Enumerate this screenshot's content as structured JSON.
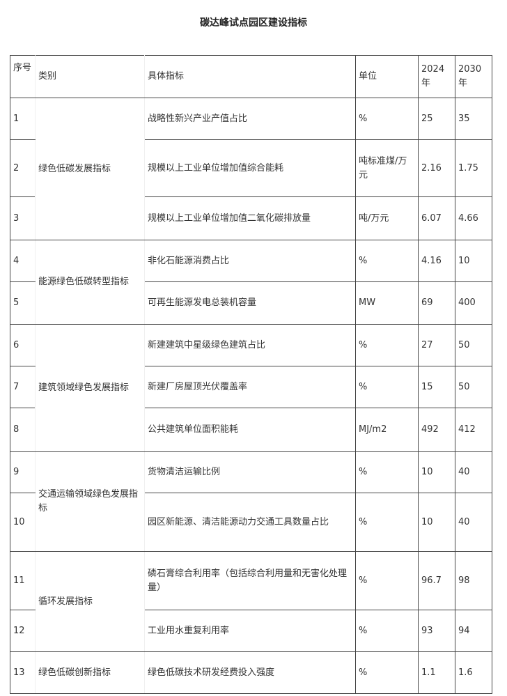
{
  "title": "碳达峰试点园区建设指标",
  "table": {
    "headers": {
      "seq": "序号",
      "category": "类别",
      "indicator": "具体指标",
      "unit": "单位",
      "y2024": "2024年",
      "y2030": "2030年"
    },
    "categories": [
      "绿色低碳发展指标",
      "能源绿色低碳转型指标",
      "建筑领域绿色发展指标",
      "交通运输领域绿色发展指标",
      "循环发展指标",
      "绿色低碳创新指标"
    ],
    "rows": [
      {
        "seq": "1",
        "indicator": "战略性新兴产业产值占比",
        "unit": "%",
        "y2024": "25",
        "y2030": "35"
      },
      {
        "seq": "2",
        "indicator": "规模以上工业单位增加值综合能耗",
        "unit": "吨标准煤/万元",
        "y2024": "2.16",
        "y2030": "1.75"
      },
      {
        "seq": "3",
        "indicator": "规模以上工业单位增加值二氧化碳排放量",
        "unit": "吨/万元",
        "y2024": "6.07",
        "y2030": "4.66"
      },
      {
        "seq": "4",
        "indicator": "非化石能源消费占比",
        "unit": "%",
        "y2024": "4.16",
        "y2030": "10"
      },
      {
        "seq": "5",
        "indicator": "可再生能源发电总装机容量",
        "unit": "MW",
        "y2024": "69",
        "y2030": "400"
      },
      {
        "seq": "6",
        "indicator": "新建建筑中星级绿色建筑占比",
        "unit": "%",
        "y2024": "27",
        "y2030": "50"
      },
      {
        "seq": "7",
        "indicator": "新建厂房屋顶光伏覆盖率",
        "unit": "%",
        "y2024": "15",
        "y2030": "50"
      },
      {
        "seq": "8",
        "indicator": "公共建筑单位面积能耗",
        "unit": "MJ/m2",
        "y2024": "492",
        "y2030": "412"
      },
      {
        "seq": "9",
        "indicator": "货物清洁运输比例",
        "unit": "%",
        "y2024": "10",
        "y2030": "40"
      },
      {
        "seq": "10",
        "indicator": "园区新能源、清洁能源动力交通工具数量占比",
        "unit": "%",
        "y2024": "10",
        "y2030": "40"
      },
      {
        "seq": "11",
        "indicator": "磷石膏综合利用率（包括综合利用量和无害化处理量）",
        "unit": "%",
        "y2024": "96.7",
        "y2030": "98"
      },
      {
        "seq": "12",
        "indicator": "工业用水重复利用率",
        "unit": "%",
        "y2024": "93",
        "y2030": "94"
      },
      {
        "seq": "13",
        "indicator": "绿色低碳技术研发经费投入强度",
        "unit": "%",
        "y2024": "1.1",
        "y2030": "1.6"
      }
    ]
  }
}
